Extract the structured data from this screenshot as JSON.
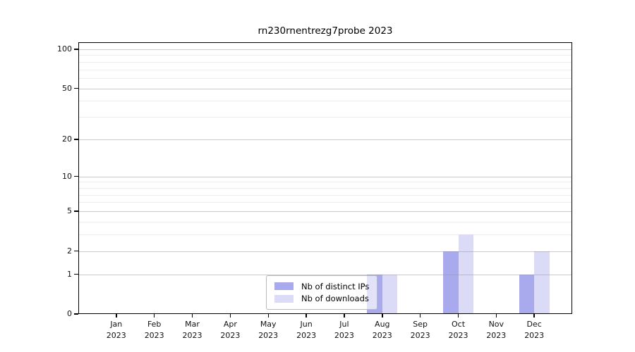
{
  "chart_data": {
    "type": "bar",
    "title": "rn230rnentrezg7probe 2023",
    "categories": [
      "Jan",
      "Feb",
      "Mar",
      "Apr",
      "May",
      "Jun",
      "Jul",
      "Aug",
      "Sep",
      "Oct",
      "Nov",
      "Dec"
    ],
    "category_year": "2023",
    "series": [
      {
        "name": "Nb of distinct IPs",
        "color": "#a9a9ee",
        "values": [
          0,
          0,
          0,
          0,
          0,
          0,
          0,
          1,
          0,
          2,
          0,
          1
        ]
      },
      {
        "name": "Nb of downloads",
        "color": "#dbdbf7",
        "values": [
          0,
          0,
          0,
          0,
          0,
          0,
          0,
          1,
          0,
          3,
          0,
          2
        ]
      }
    ],
    "y_axis": {
      "scale": "log10(1+x)",
      "major_ticks": [
        0,
        1,
        2,
        5,
        10,
        20,
        50,
        100
      ],
      "minor_ticks": [
        3,
        4,
        6,
        7,
        8,
        9,
        30,
        40,
        60,
        70,
        80,
        90
      ],
      "top_value": 113
    },
    "x_axis": {
      "tick_label_format": "month over year"
    },
    "legend": {
      "position": "lower center",
      "entries": [
        "Nb of distinct IPs",
        "Nb of downloads"
      ]
    },
    "grid": true,
    "plot_background": "#ffffff"
  }
}
